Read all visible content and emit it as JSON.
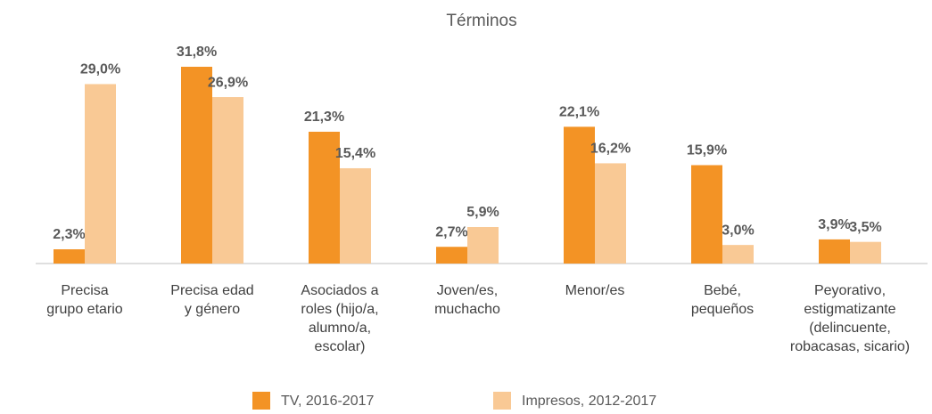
{
  "chart_data": {
    "type": "bar",
    "title": "Términos",
    "categories": [
      "Precisa\ngrupo etario",
      "Precisa edad\ny género",
      "Asociados a\nroles (hijo/a,\nalumno/a,\nescolar)",
      "Joven/es,\nmuchacho",
      "Menor/es",
      "Bebé,\npequeños",
      "Peyorativo,\nestigmatizante\n(delincuente,\nrobacasas, sicario)"
    ],
    "series": [
      {
        "name": "TV, 2016-2017",
        "color": "#f39325",
        "values": [
          2.3,
          31.8,
          21.3,
          2.7,
          22.1,
          15.9,
          3.9
        ],
        "value_labels": [
          "2,3%",
          "31,8%",
          "21,3%",
          "2,7%",
          "22,1%",
          "15,9%",
          "3,9%"
        ]
      },
      {
        "name": "Impresos, 2012-2017",
        "color": "#f9c995",
        "values": [
          29.0,
          26.9,
          15.4,
          5.9,
          16.2,
          3.0,
          3.5
        ],
        "value_labels": [
          "29,0%",
          "26,9%",
          "15,4%",
          "5,9%",
          "16,2%",
          "3,0%",
          "3,5%"
        ]
      }
    ]
  }
}
